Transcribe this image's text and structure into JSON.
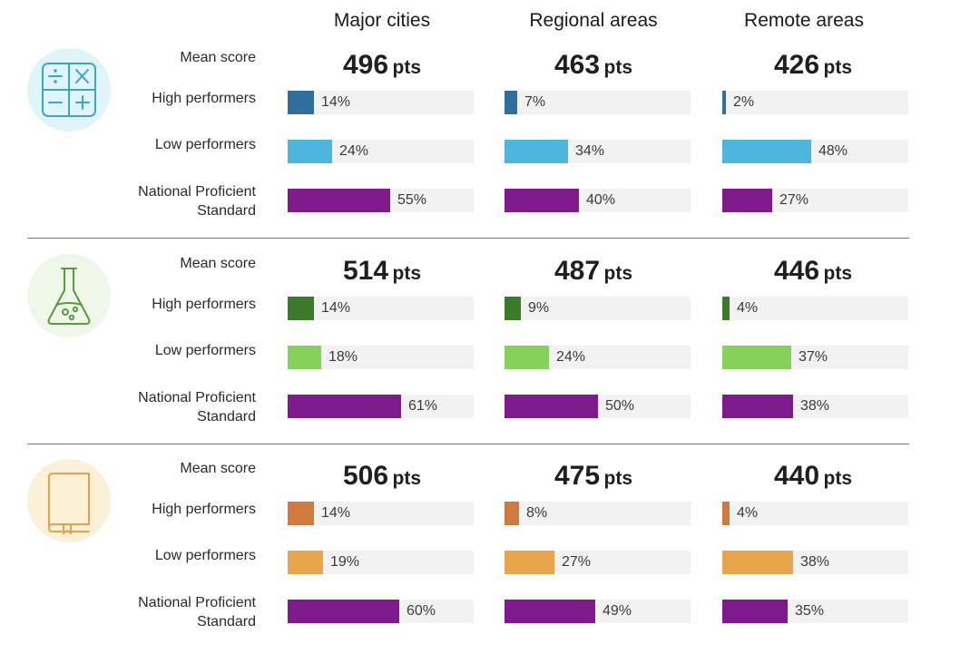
{
  "columns": [
    "Major cities",
    "Regional areas",
    "Remote areas"
  ],
  "row_labels": {
    "mean": "Mean score",
    "high": "High performers",
    "low": "Low performers",
    "nps_line1": "National Proficient",
    "nps_line2": "Standard"
  },
  "units": {
    "pts": "pts"
  },
  "colors": {
    "nps": "#7e1a8c",
    "track": "#f2f2f2"
  },
  "chart_data": [
    {
      "type": "bar",
      "subject_icon": "math-operators-icon",
      "icon_bg": "#e0f5fa",
      "icon_stroke": "#3ea5c7",
      "colors": {
        "high": "#2e6f9e",
        "low": "#4cb6df",
        "nps": "#7e1a8c"
      },
      "categories": [
        "Major cities",
        "Regional areas",
        "Remote areas"
      ],
      "mean_score": [
        496,
        463,
        426
      ],
      "series": [
        {
          "name": "High performers",
          "values": [
            14,
            7,
            2
          ]
        },
        {
          "name": "Low performers",
          "values": [
            24,
            34,
            48
          ]
        },
        {
          "name": "National Proficient Standard",
          "values": [
            55,
            40,
            27
          ]
        }
      ],
      "xlim": [
        0,
        100
      ]
    },
    {
      "type": "bar",
      "subject_icon": "science-flask-icon",
      "icon_bg": "#eef7e8",
      "icon_stroke": "#5a9a3c",
      "colors": {
        "high": "#3a7a2a",
        "low": "#86d15a",
        "nps": "#7e1a8c"
      },
      "categories": [
        "Major cities",
        "Regional areas",
        "Remote areas"
      ],
      "mean_score": [
        514,
        487,
        446
      ],
      "series": [
        {
          "name": "High performers",
          "values": [
            14,
            9,
            4
          ]
        },
        {
          "name": "Low performers",
          "values": [
            18,
            24,
            37
          ]
        },
        {
          "name": "National Proficient Standard",
          "values": [
            61,
            50,
            38
          ]
        }
      ],
      "xlim": [
        0,
        100
      ]
    },
    {
      "type": "bar",
      "subject_icon": "reading-book-icon",
      "icon_bg": "#fdf0d9",
      "icon_stroke": "#e6a24a",
      "colors": {
        "high": "#d07a3f",
        "low": "#e9a54b",
        "nps": "#7e1a8c"
      },
      "categories": [
        "Major cities",
        "Regional areas",
        "Remote areas"
      ],
      "mean_score": [
        506,
        475,
        440
      ],
      "series": [
        {
          "name": "High performers",
          "values": [
            14,
            8,
            4
          ]
        },
        {
          "name": "Low performers",
          "values": [
            19,
            27,
            38
          ]
        },
        {
          "name": "National Proficient Standard",
          "values": [
            60,
            49,
            35
          ]
        }
      ],
      "xlim": [
        0,
        100
      ]
    }
  ]
}
